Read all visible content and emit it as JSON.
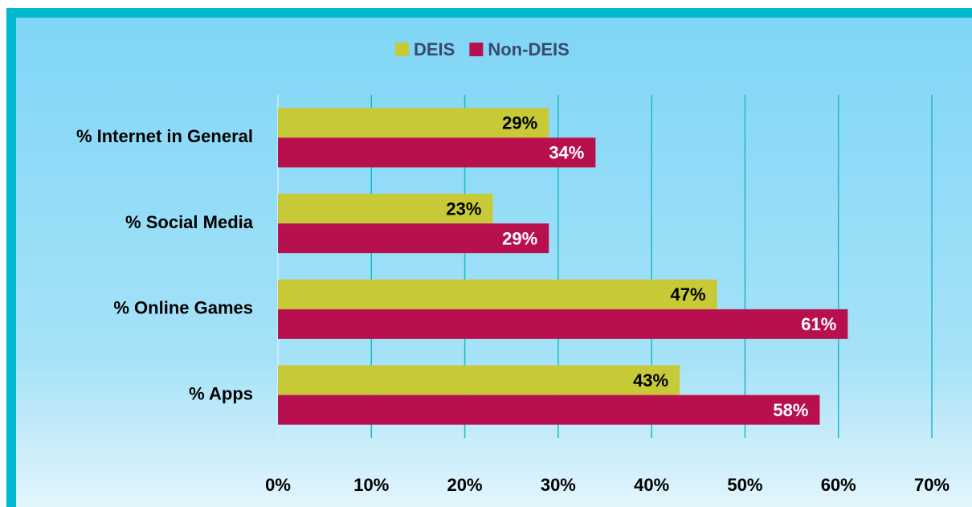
{
  "chart_data": {
    "type": "hbar",
    "categories": [
      "% Internet in General",
      "% Social Media",
      "% Online Games",
      "% Apps"
    ],
    "series": [
      {
        "name": "DEIS",
        "color": "#c8c936",
        "values": [
          29,
          23,
          47,
          43
        ],
        "value_labels": [
          "29%",
          "23%",
          "47%",
          "43%"
        ]
      },
      {
        "name": "Non-DEIS",
        "color": "#b8104f",
        "values": [
          34,
          29,
          61,
          58
        ],
        "value_labels": [
          "34%",
          "29%",
          "61%",
          "58%"
        ]
      }
    ],
    "xlim": [
      0,
      70
    ],
    "xticks": [
      {
        "value": 0,
        "label": "0%"
      },
      {
        "value": 10,
        "label": "10%"
      },
      {
        "value": 20,
        "label": "20%"
      },
      {
        "value": 30,
        "label": "30%"
      },
      {
        "value": 40,
        "label": "40%"
      },
      {
        "value": 50,
        "label": "50%"
      },
      {
        "value": 60,
        "label": "60%"
      },
      {
        "value": 70,
        "label": "70%"
      }
    ],
    "grid": true,
    "legend": "top"
  }
}
